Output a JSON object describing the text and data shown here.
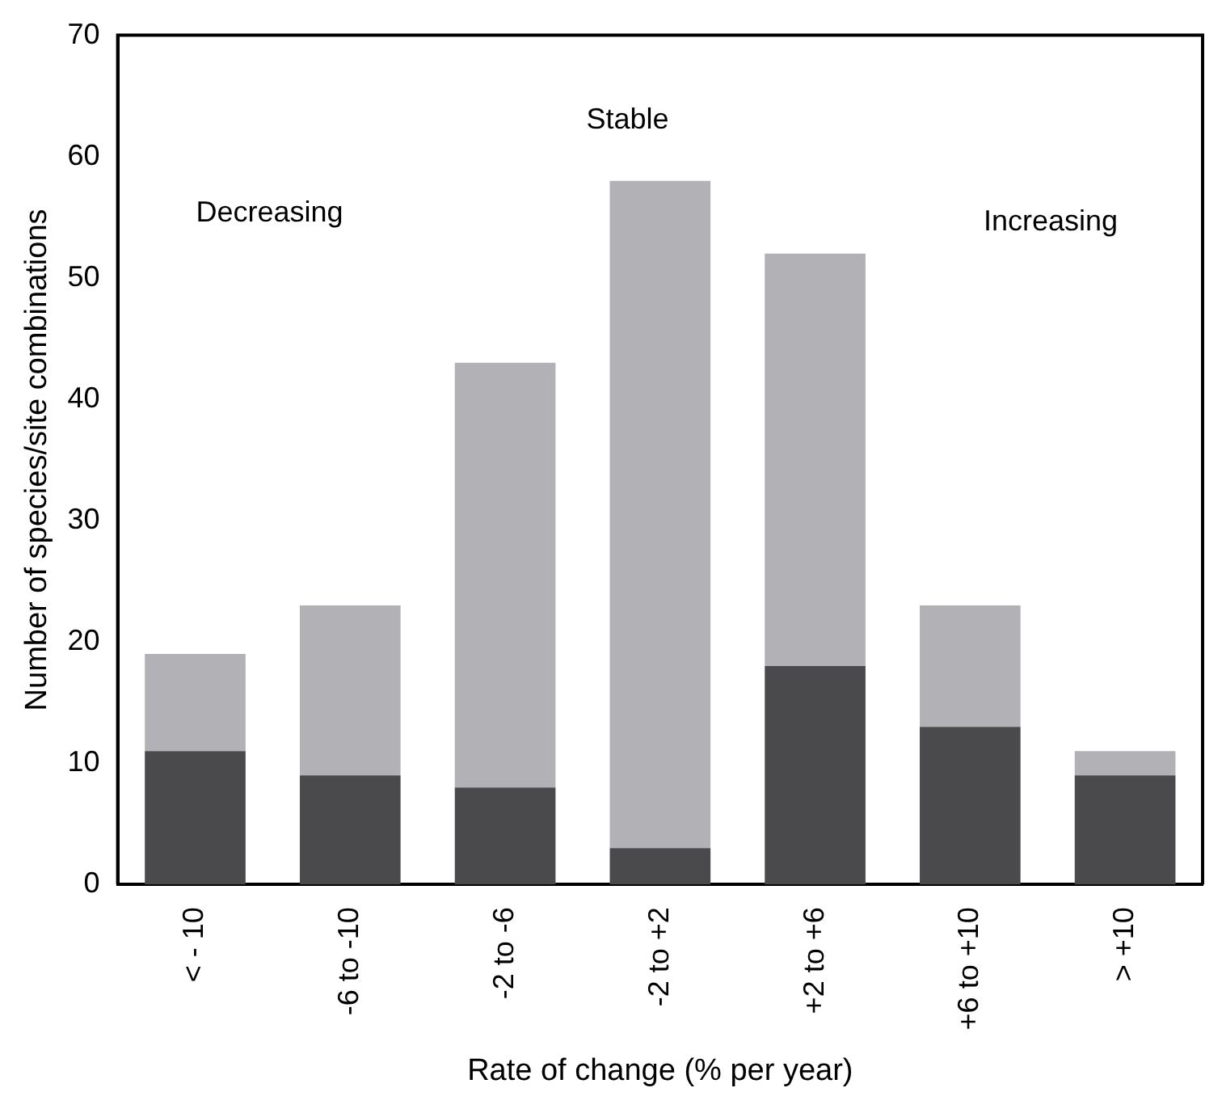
{
  "chart_data": {
    "type": "bar",
    "xlabel": "Rate of change (% per year)",
    "ylabel": "Number of species/site combinations",
    "categories": [
      "< - 10",
      "-6 to -10",
      "-2 to -6",
      "-2 to +2",
      "+2 to +6",
      "+6 to +10",
      "> +10"
    ],
    "series": [
      {
        "color": "#4a4a4c",
        "values": [
          11,
          9,
          8,
          3,
          18,
          13,
          9
        ]
      },
      {
        "color": "#b2b2b6",
        "values": [
          8,
          14,
          35,
          55,
          34,
          10,
          2
        ]
      }
    ],
    "stacked": true,
    "ylim": [
      0,
      70
    ],
    "yticks": [
      0,
      10,
      20,
      30,
      40,
      50,
      60,
      70
    ],
    "grid": false,
    "legend": false,
    "annotations": [
      "Decreasing",
      "Stable",
      "Increasing"
    ]
  }
}
